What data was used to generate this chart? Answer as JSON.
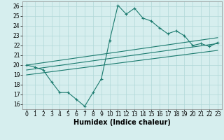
{
  "xlabel": "Humidex (Indice chaleur)",
  "ylabel": "",
  "background_color": "#d6eeee",
  "line_color": "#1a7a6e",
  "xlim": [
    -0.5,
    23.5
  ],
  "ylim": [
    15.5,
    26.5
  ],
  "yticks": [
    16,
    17,
    18,
    19,
    20,
    21,
    22,
    23,
    24,
    25,
    26
  ],
  "xticks": [
    0,
    1,
    2,
    3,
    4,
    5,
    6,
    7,
    8,
    9,
    10,
    11,
    12,
    13,
    14,
    15,
    16,
    17,
    18,
    19,
    20,
    21,
    22,
    23
  ],
  "main_x": [
    0,
    1,
    2,
    3,
    4,
    5,
    6,
    7,
    8,
    9,
    10,
    11,
    12,
    13,
    14,
    15,
    16,
    17,
    18,
    19,
    20,
    21,
    22,
    23
  ],
  "main_y": [
    20.0,
    19.8,
    19.5,
    18.3,
    17.2,
    17.2,
    16.5,
    15.8,
    17.2,
    18.6,
    22.5,
    26.1,
    25.2,
    25.8,
    24.8,
    24.5,
    23.8,
    23.2,
    23.5,
    23.0,
    22.0,
    22.2,
    21.9,
    22.3
  ],
  "line1_x": [
    0,
    23
  ],
  "line1_y": [
    20.0,
    22.8
  ],
  "line2_x": [
    0,
    23
  ],
  "line2_y": [
    19.5,
    22.2
  ],
  "line3_x": [
    0,
    23
  ],
  "line3_y": [
    19.0,
    21.5
  ],
  "grid_color": "#b0d8d8",
  "tick_fontsize": 5.5,
  "label_fontsize": 7.0
}
